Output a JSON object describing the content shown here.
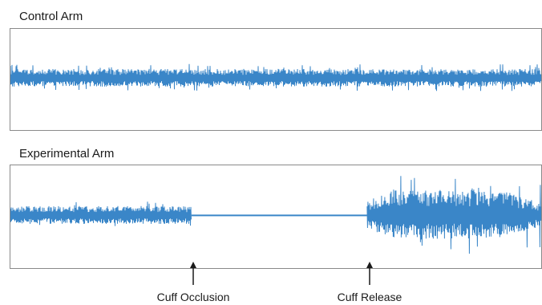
{
  "chart_data": {
    "type": "line",
    "line_color": "#3a86c8",
    "x_unit": "relative time (0-100)",
    "panels": [
      {
        "title": "Control Arm",
        "series": {
          "segments": [
            {
              "x_start": 0,
              "x_end": 100,
              "state": "activity",
              "amplitude": 0.18,
              "spike_amplitude": 0.28
            }
          ]
        }
      },
      {
        "title": "Experimental Arm",
        "series": {
          "segments": [
            {
              "x_start": 0,
              "x_end": 34,
              "state": "activity",
              "amplitude": 0.18,
              "spike_amplitude": 0.28
            },
            {
              "x_start": 34,
              "x_end": 67,
              "state": "flat",
              "amplitude": 0.0
            },
            {
              "x_start": 67,
              "x_end": 100,
              "state": "hyperemia",
              "amplitude": 0.5,
              "spike_amplitude": 0.85
            }
          ]
        }
      }
    ],
    "annotations": [
      {
        "label": "Cuff Occlusion",
        "x": 34
      },
      {
        "label": "Cuff Release",
        "x": 67
      }
    ]
  }
}
